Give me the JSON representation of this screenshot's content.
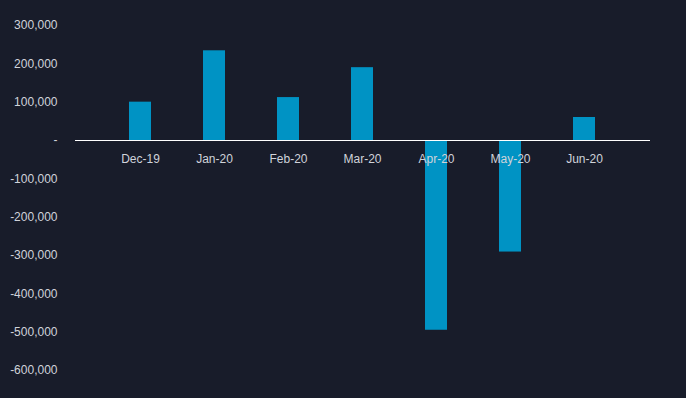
{
  "chart_data": {
    "type": "bar",
    "categories": [
      "Dec-19",
      "Jan-20",
      "Feb-20",
      "Mar-20",
      "Apr-20",
      "May-20",
      "Jun-20"
    ],
    "values": [
      100000,
      234000,
      112000,
      190000,
      -495000,
      -291000,
      60000
    ],
    "color": "#0093c4",
    "ylim": [
      -600000,
      300000
    ],
    "yticks": [
      {
        "value": 300000,
        "label": "300,000"
      },
      {
        "value": 200000,
        "label": "200,000"
      },
      {
        "value": 100000,
        "label": "100,000"
      },
      {
        "value": 0,
        "label": "-"
      },
      {
        "value": -100000,
        "label": "-100,000"
      },
      {
        "value": -200000,
        "label": "-200,000"
      },
      {
        "value": -300000,
        "label": "-300,000"
      },
      {
        "value": -400000,
        "label": "-400,000"
      },
      {
        "value": -500000,
        "label": "-500,000"
      },
      {
        "value": -600000,
        "label": "-600,000"
      }
    ],
    "grid": false
  }
}
